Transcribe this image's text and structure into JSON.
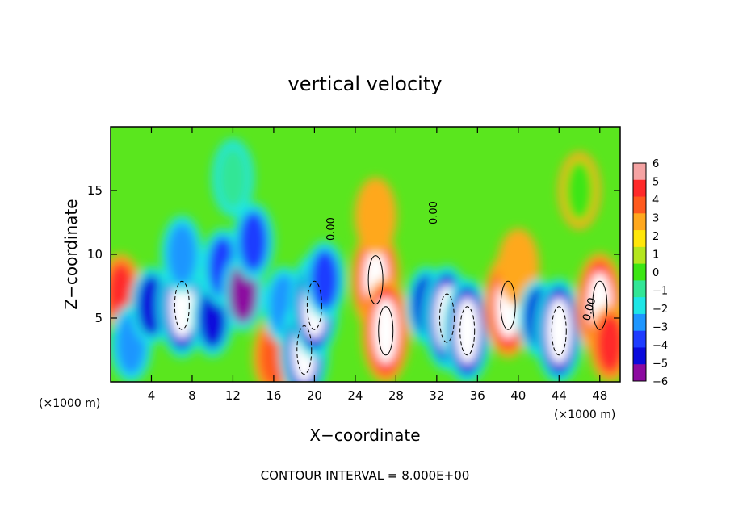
{
  "chart_data": {
    "type": "heatmap",
    "title": "vertical velocity",
    "xlabel": "X−coordinate",
    "ylabel": "Z−coordinate",
    "x_unit_label": "(×1000 m)",
    "y_unit_label": "(×1000 m)",
    "xlim": [
      0,
      50
    ],
    "ylim": [
      0,
      20
    ],
    "x_ticks": [
      4,
      8,
      12,
      16,
      20,
      24,
      28,
      32,
      36,
      40,
      44,
      48
    ],
    "y_ticks": [
      5,
      10,
      15
    ],
    "x_tick_labels": [
      "4",
      "8",
      "12",
      "16",
      "20",
      "24",
      "28",
      "32",
      "36",
      "40",
      "44",
      "48"
    ],
    "y_tick_labels": [
      "5",
      "10",
      "15"
    ],
    "colorbar": {
      "min": -6,
      "max": 6,
      "tick_labels": [
        "6",
        "5",
        "4",
        "3",
        "2",
        "1",
        "0",
        "−1",
        "−2",
        "−3",
        "−4",
        "−5",
        "−6"
      ],
      "colors": [
        "#f5a3a3",
        "#ff2a2a",
        "#ff5a1e",
        "#ffa81e",
        "#ffe60a",
        "#b4e61e",
        "#3ce614",
        "#32e696",
        "#1ee6e6",
        "#1e96ff",
        "#1e3cff",
        "#0a0adc",
        "#8c0aa0"
      ]
    },
    "contour_labels": [
      "0.00",
      "0.00",
      "0.00"
    ],
    "contour_interval_text": "CONTOUR INTERVAL =  8.000E+00",
    "cells": [
      {
        "x": 1,
        "z": 7,
        "w": 5.5
      },
      {
        "x": 2,
        "z": 3,
        "w": -3
      },
      {
        "x": 4,
        "z": 6,
        "w": -4.5
      },
      {
        "x": 7,
        "z": 6,
        "w": -8
      },
      {
        "x": 7,
        "z": 10,
        "w": -3
      },
      {
        "x": 10,
        "z": 5,
        "w": -5
      },
      {
        "x": 11,
        "z": 9,
        "w": -4
      },
      {
        "x": 13,
        "z": 7,
        "w": -6
      },
      {
        "x": 14,
        "z": 11,
        "w": -3.5
      },
      {
        "x": 16,
        "z": 2,
        "w": 4
      },
      {
        "x": 17,
        "z": 6,
        "w": -3
      },
      {
        "x": 19,
        "z": 2.5,
        "w": -8
      },
      {
        "x": 20,
        "z": 6,
        "w": -8
      },
      {
        "x": 21,
        "z": 8,
        "w": -4
      },
      {
        "x": 26,
        "z": 8,
        "w": 18
      },
      {
        "x": 26,
        "z": 13,
        "w": 3
      },
      {
        "x": 27,
        "z": 4,
        "w": 8
      },
      {
        "x": 31,
        "z": 6,
        "w": -5
      },
      {
        "x": 33,
        "z": 5,
        "w": -10
      },
      {
        "x": 35,
        "z": 4,
        "w": -8
      },
      {
        "x": 39,
        "z": 6,
        "w": 10
      },
      {
        "x": 40,
        "z": 9,
        "w": 3
      },
      {
        "x": 42,
        "z": 5,
        "w": -5
      },
      {
        "x": 44,
        "z": 4,
        "w": -8
      },
      {
        "x": 48,
        "z": 6,
        "w": 9
      },
      {
        "x": 49,
        "z": 3,
        "w": 5
      },
      {
        "x": 12,
        "z": 16,
        "w": -1
      },
      {
        "x": 46,
        "z": 15,
        "w": 0.5
      }
    ]
  }
}
